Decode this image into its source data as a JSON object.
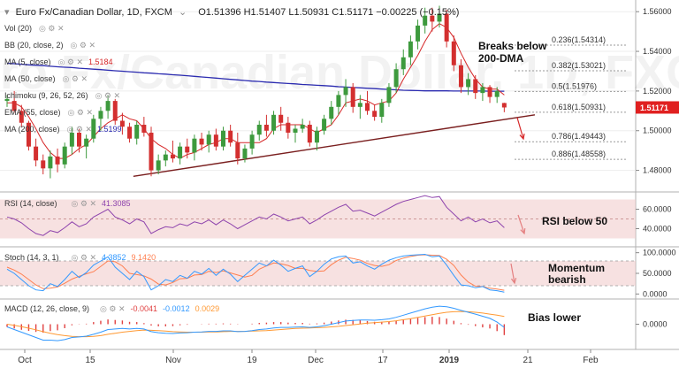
{
  "header": {
    "symbol": "Euro Fx/Canadian Dollar, 1D, FXCM",
    "ohlc": "O1.51396  H1.51407  L1.50931  C1.51171  −0.00225 (−0.15%)"
  },
  "indicators": [
    {
      "label": "Vol (20)",
      "value": "",
      "color": "#555555"
    },
    {
      "label": "BB (20, close, 2)",
      "value": "",
      "color": "#555555"
    },
    {
      "label": "MA (5, close)",
      "value": "1.5184",
      "color": "#d62728"
    },
    {
      "label": "MA (50, close)",
      "value": "",
      "color": "#555555"
    },
    {
      "label": "Ichimoku (9, 26, 52, 26)",
      "value": "",
      "color": "#555555"
    },
    {
      "label": "EMA (55, close)",
      "value": "",
      "color": "#555555"
    },
    {
      "label": "MA (200, close)",
      "value": "1.5199",
      "color": "#2b2bb0"
    }
  ],
  "annotations": {
    "breaks": "Breaks below",
    "dma": "200-DMA",
    "rsi": "RSI below 50",
    "momentum1": "Momentum",
    "momentum2": "bearish",
    "bias": "Bias lower"
  },
  "fib_levels": [
    {
      "label": "0.236(1.54314)",
      "value": 1.54314
    },
    {
      "label": "0.382(1.53021)",
      "value": 1.53021
    },
    {
      "label": "0.5(1.51976)",
      "value": 1.51976
    },
    {
      "label": "0.618(1.50931)",
      "value": 1.50931
    },
    {
      "label": "0.786(1.49443)",
      "value": 1.49443
    },
    {
      "label": "0.886(1.48558)",
      "value": 1.48558
    }
  ],
  "price_tag": {
    "label": "1.51171",
    "value": 1.51171,
    "color": "#e02020"
  },
  "rsi_panel": {
    "label": "RSI (14, close)",
    "value": "41.3085",
    "ticks": [
      "60.0000",
      "40.0000"
    ]
  },
  "stoch_panel": {
    "label": "Stoch (14, 3, 1)",
    "k": "4.3852",
    "d": "9.1420",
    "ticks": [
      "100.0000",
      "50.0000",
      "0.0000"
    ]
  },
  "macd_panel": {
    "label": "MACD (12, 26, close, 9)",
    "hist": "-0.0041",
    "macd": "-0.0012",
    "signal": "0.0029",
    "ticks": [
      "0.0000"
    ]
  },
  "x_axis": {
    "ticks": [
      "Oct",
      "15",
      "Nov",
      "19",
      "Dec",
      "17",
      "2019",
      "21",
      "Feb"
    ]
  },
  "colors": {
    "up": "#3d9a3d",
    "down": "#d32f2f",
    "ma200": "#2b2bb0",
    "ma5": "#d62728",
    "trendline": "#7a1f1f",
    "rsi": "#8e44ad",
    "stoch_k": "#3399ff",
    "stoch_d": "#ff7f50",
    "macd": "#3399ff",
    "signal": "#ff9933",
    "hist": "#e04040",
    "band": "#f0c8c8",
    "arrow": "#d62728"
  },
  "chart_data": {
    "type": "candlestick",
    "x": [
      "Oct",
      "15",
      "Nov",
      "19",
      "Dec",
      "17",
      "2019",
      "21",
      "Feb"
    ],
    "ylim": [
      1.47,
      1.565
    ],
    "y_ticks": [
      1.56,
      1.54,
      1.52,
      1.5,
      1.48
    ],
    "y_tick_labels": [
      "1.56000",
      "1.54000",
      "1.52000",
      "1.50000",
      "1.48000"
    ],
    "candles": [
      {
        "o": 1.515,
        "h": 1.518,
        "l": 1.512,
        "c": 1.516
      },
      {
        "o": 1.515,
        "h": 1.52,
        "l": 1.509,
        "c": 1.51
      },
      {
        "o": 1.51,
        "h": 1.513,
        "l": 1.502,
        "c": 1.504
      },
      {
        "o": 1.504,
        "h": 1.505,
        "l": 1.49,
        "c": 1.492
      },
      {
        "o": 1.492,
        "h": 1.496,
        "l": 1.482,
        "c": 1.485
      },
      {
        "o": 1.485,
        "h": 1.488,
        "l": 1.478,
        "c": 1.481
      },
      {
        "o": 1.481,
        "h": 1.49,
        "l": 1.476,
        "c": 1.487
      },
      {
        "o": 1.487,
        "h": 1.491,
        "l": 1.479,
        "c": 1.483
      },
      {
        "o": 1.483,
        "h": 1.494,
        "l": 1.481,
        "c": 1.492
      },
      {
        "o": 1.492,
        "h": 1.502,
        "l": 1.488,
        "c": 1.499
      },
      {
        "o": 1.499,
        "h": 1.501,
        "l": 1.489,
        "c": 1.492
      },
      {
        "o": 1.492,
        "h": 1.498,
        "l": 1.486,
        "c": 1.496
      },
      {
        "o": 1.496,
        "h": 1.508,
        "l": 1.494,
        "c": 1.506
      },
      {
        "o": 1.506,
        "h": 1.512,
        "l": 1.5,
        "c": 1.51
      },
      {
        "o": 1.51,
        "h": 1.518,
        "l": 1.506,
        "c": 1.515
      },
      {
        "o": 1.515,
        "h": 1.516,
        "l": 1.503,
        "c": 1.505
      },
      {
        "o": 1.505,
        "h": 1.509,
        "l": 1.498,
        "c": 1.502
      },
      {
        "o": 1.502,
        "h": 1.504,
        "l": 1.494,
        "c": 1.496
      },
      {
        "o": 1.496,
        "h": 1.505,
        "l": 1.493,
        "c": 1.503
      },
      {
        "o": 1.503,
        "h": 1.507,
        "l": 1.497,
        "c": 1.499
      },
      {
        "o": 1.499,
        "h": 1.502,
        "l": 1.477,
        "c": 1.48
      },
      {
        "o": 1.48,
        "h": 1.488,
        "l": 1.478,
        "c": 1.485
      },
      {
        "o": 1.485,
        "h": 1.49,
        "l": 1.482,
        "c": 1.488
      },
      {
        "o": 1.488,
        "h": 1.495,
        "l": 1.484,
        "c": 1.486
      },
      {
        "o": 1.486,
        "h": 1.494,
        "l": 1.483,
        "c": 1.492
      },
      {
        "o": 1.492,
        "h": 1.496,
        "l": 1.486,
        "c": 1.489
      },
      {
        "o": 1.489,
        "h": 1.498,
        "l": 1.485,
        "c": 1.496
      },
      {
        "o": 1.496,
        "h": 1.499,
        "l": 1.49,
        "c": 1.493
      },
      {
        "o": 1.493,
        "h": 1.5,
        "l": 1.489,
        "c": 1.498
      },
      {
        "o": 1.498,
        "h": 1.501,
        "l": 1.49,
        "c": 1.492
      },
      {
        "o": 1.492,
        "h": 1.502,
        "l": 1.49,
        "c": 1.5
      },
      {
        "o": 1.5,
        "h": 1.503,
        "l": 1.492,
        "c": 1.494
      },
      {
        "o": 1.494,
        "h": 1.499,
        "l": 1.483,
        "c": 1.486
      },
      {
        "o": 1.486,
        "h": 1.493,
        "l": 1.484,
        "c": 1.491
      },
      {
        "o": 1.491,
        "h": 1.5,
        "l": 1.488,
        "c": 1.498
      },
      {
        "o": 1.498,
        "h": 1.505,
        "l": 1.495,
        "c": 1.503
      },
      {
        "o": 1.503,
        "h": 1.508,
        "l": 1.497,
        "c": 1.5
      },
      {
        "o": 1.5,
        "h": 1.51,
        "l": 1.498,
        "c": 1.508
      },
      {
        "o": 1.508,
        "h": 1.512,
        "l": 1.5,
        "c": 1.504
      },
      {
        "o": 1.504,
        "h": 1.507,
        "l": 1.496,
        "c": 1.499
      },
      {
        "o": 1.499,
        "h": 1.503,
        "l": 1.494,
        "c": 1.501
      },
      {
        "o": 1.501,
        "h": 1.506,
        "l": 1.499,
        "c": 1.503
      },
      {
        "o": 1.503,
        "h": 1.505,
        "l": 1.492,
        "c": 1.494
      },
      {
        "o": 1.494,
        "h": 1.502,
        "l": 1.49,
        "c": 1.5
      },
      {
        "o": 1.5,
        "h": 1.508,
        "l": 1.498,
        "c": 1.506
      },
      {
        "o": 1.506,
        "h": 1.515,
        "l": 1.503,
        "c": 1.512
      },
      {
        "o": 1.512,
        "h": 1.52,
        "l": 1.508,
        "c": 1.518
      },
      {
        "o": 1.518,
        "h": 1.526,
        "l": 1.512,
        "c": 1.522
      },
      {
        "o": 1.522,
        "h": 1.524,
        "l": 1.509,
        "c": 1.512
      },
      {
        "o": 1.512,
        "h": 1.518,
        "l": 1.506,
        "c": 1.514
      },
      {
        "o": 1.514,
        "h": 1.52,
        "l": 1.508,
        "c": 1.51
      },
      {
        "o": 1.51,
        "h": 1.513,
        "l": 1.505,
        "c": 1.507
      },
      {
        "o": 1.507,
        "h": 1.516,
        "l": 1.504,
        "c": 1.514
      },
      {
        "o": 1.514,
        "h": 1.524,
        "l": 1.512,
        "c": 1.522
      },
      {
        "o": 1.522,
        "h": 1.534,
        "l": 1.519,
        "c": 1.531
      },
      {
        "o": 1.531,
        "h": 1.541,
        "l": 1.528,
        "c": 1.537
      },
      {
        "o": 1.537,
        "h": 1.548,
        "l": 1.533,
        "c": 1.545
      },
      {
        "o": 1.545,
        "h": 1.556,
        "l": 1.541,
        "c": 1.553
      },
      {
        "o": 1.553,
        "h": 1.562,
        "l": 1.549,
        "c": 1.558
      },
      {
        "o": 1.558,
        "h": 1.562,
        "l": 1.55,
        "c": 1.555
      },
      {
        "o": 1.555,
        "h": 1.563,
        "l": 1.552,
        "c": 1.559
      },
      {
        "o": 1.559,
        "h": 1.561,
        "l": 1.542,
        "c": 1.545
      },
      {
        "o": 1.545,
        "h": 1.548,
        "l": 1.53,
        "c": 1.533
      },
      {
        "o": 1.533,
        "h": 1.536,
        "l": 1.519,
        "c": 1.522
      },
      {
        "o": 1.522,
        "h": 1.529,
        "l": 1.518,
        "c": 1.526
      },
      {
        "o": 1.526,
        "h": 1.528,
        "l": 1.516,
        "c": 1.519
      },
      {
        "o": 1.519,
        "h": 1.524,
        "l": 1.515,
        "c": 1.522
      },
      {
        "o": 1.522,
        "h": 1.523,
        "l": 1.514,
        "c": 1.517
      },
      {
        "o": 1.517,
        "h": 1.522,
        "l": 1.514,
        "c": 1.52
      },
      {
        "o": 1.51396,
        "h": 1.51407,
        "l": 1.50931,
        "c": 1.51171
      }
    ],
    "ma200": [
      1.534,
      1.5338,
      1.5335,
      1.5332,
      1.533,
      1.5328,
      1.5325,
      1.5322,
      1.532,
      1.5318,
      1.5315,
      1.5313,
      1.531,
      1.5308,
      1.5305,
      1.5302,
      1.53,
      1.5297,
      1.5295,
      1.5292,
      1.529,
      1.5287,
      1.5285,
      1.5282,
      1.528,
      1.5277,
      1.5274,
      1.5271,
      1.5268,
      1.5265,
      1.5262,
      1.5259,
      1.5256,
      1.5253,
      1.525,
      1.5248,
      1.5245,
      1.5243,
      1.524,
      1.5238,
      1.5236,
      1.5233,
      1.5231,
      1.5229,
      1.5227,
      1.5225,
      1.5222,
      1.522,
      1.5218,
      1.5216,
      1.5214,
      1.5212,
      1.521,
      1.5208,
      1.5206,
      1.5204,
      1.5203,
      1.5202,
      1.5201,
      1.5201,
      1.5201,
      1.5201,
      1.52,
      1.52,
      1.52,
      1.52,
      1.52,
      1.5199,
      1.5199,
      1.5199
    ],
    "ma5": [
      1.514,
      1.514,
      1.512,
      1.507,
      1.501,
      1.494,
      1.489,
      1.486,
      1.486,
      1.488,
      1.491,
      1.493,
      1.497,
      1.501,
      1.504,
      1.506,
      1.508,
      1.506,
      1.505,
      1.501,
      1.496,
      1.493,
      1.491,
      1.488,
      1.486,
      1.488,
      1.489,
      1.491,
      1.493,
      1.494,
      1.496,
      1.496,
      1.494,
      1.494,
      1.494,
      1.494,
      1.496,
      1.501,
      1.503,
      1.503,
      1.503,
      1.503,
      1.501,
      1.499,
      1.501,
      1.503,
      1.508,
      1.514,
      1.515,
      1.516,
      1.515,
      1.513,
      1.514,
      1.515,
      1.519,
      1.526,
      1.532,
      1.538,
      1.545,
      1.551,
      1.554,
      1.552,
      1.547,
      1.539,
      1.532,
      1.526,
      1.522,
      1.521,
      1.521,
      1.518
    ],
    "trendline": {
      "from": {
        "index": 19,
        "value": 1.477
      },
      "to": {
        "index": 73,
        "value": 1.508
      }
    },
    "rsi": [
      52,
      50,
      46,
      40,
      35,
      33,
      38,
      36,
      41,
      47,
      42,
      45,
      52,
      56,
      60,
      52,
      49,
      45,
      50,
      47,
      35,
      39,
      42,
      41,
      45,
      43,
      47,
      45,
      49,
      44,
      49,
      45,
      40,
      44,
      48,
      52,
      50,
      55,
      52,
      48,
      50,
      52,
      45,
      49,
      54,
      58,
      62,
      65,
      58,
      59,
      56,
      53,
      57,
      61,
      65,
      68,
      70,
      72,
      74,
      72,
      73,
      62,
      55,
      48,
      52,
      47,
      50,
      46,
      48,
      41
    ],
    "stoch_k": [
      60,
      50,
      35,
      20,
      10,
      8,
      25,
      18,
      35,
      55,
      40,
      52,
      70,
      80,
      90,
      65,
      50,
      35,
      55,
      42,
      10,
      20,
      35,
      30,
      45,
      38,
      55,
      48,
      62,
      45,
      60,
      48,
      30,
      45,
      60,
      75,
      68,
      82,
      70,
      55,
      62,
      68,
      42,
      55,
      72,
      85,
      90,
      92,
      75,
      78,
      68,
      60,
      72,
      82,
      88,
      92,
      94,
      95,
      96,
      90,
      92,
      70,
      45,
      22,
      20,
      15,
      18,
      10,
      8,
      4.3852
    ],
    "stoch_d": [
      65,
      58,
      48,
      35,
      22,
      13,
      14,
      17,
      26,
      36,
      43,
      49,
      54,
      67,
      80,
      78,
      68,
      50,
      47,
      44,
      36,
      24,
      22,
      28,
      37,
      38,
      46,
      47,
      55,
      52,
      56,
      51,
      46,
      41,
      45,
      60,
      68,
      75,
      73,
      69,
      62,
      62,
      57,
      55,
      56,
      71,
      82,
      89,
      86,
      82,
      74,
      69,
      67,
      71,
      81,
      87,
      91,
      94,
      95,
      94,
      93,
      84,
      69,
      46,
      29,
      19,
      18,
      14,
      12,
      9.142
    ],
    "macd": [
      -0.001,
      -0.002,
      -0.003,
      -0.004,
      -0.005,
      -0.006,
      -0.006,
      -0.0062,
      -0.0058,
      -0.005,
      -0.0048,
      -0.0045,
      -0.0038,
      -0.003,
      -0.002,
      -0.0018,
      -0.0016,
      -0.0018,
      -0.0016,
      -0.0018,
      -0.0028,
      -0.0032,
      -0.0034,
      -0.0035,
      -0.0033,
      -0.0032,
      -0.003,
      -0.0029,
      -0.0027,
      -0.0027,
      -0.0025,
      -0.0025,
      -0.0028,
      -0.0027,
      -0.0024,
      -0.002,
      -0.0018,
      -0.0014,
      -0.0012,
      -0.0012,
      -0.0011,
      -0.001,
      -0.0012,
      -0.001,
      -0.0006,
      0.0,
      0.0006,
      0.0012,
      0.0014,
      0.0016,
      0.0016,
      0.0015,
      0.0017,
      0.002,
      0.0026,
      0.0034,
      0.0042,
      0.005,
      0.0058,
      0.0064,
      0.0068,
      0.0066,
      0.006,
      0.0052,
      0.0045,
      0.0038,
      0.003,
      0.0022,
      0.0008,
      -0.0012
    ],
    "macd_signal": [
      0.0,
      -0.0004,
      -0.0009,
      -0.0015,
      -0.0021,
      -0.0028,
      -0.0034,
      -0.0039,
      -0.0043,
      -0.0046,
      -0.0047,
      -0.0047,
      -0.0046,
      -0.0043,
      -0.0038,
      -0.0034,
      -0.003,
      -0.0027,
      -0.0024,
      -0.0022,
      -0.0023,
      -0.0024,
      -0.0026,
      -0.0028,
      -0.0029,
      -0.003,
      -0.003,
      -0.003,
      -0.0029,
      -0.0029,
      -0.0028,
      -0.0027,
      -0.0027,
      -0.0027,
      -0.0026,
      -0.0025,
      -0.0024,
      -0.0022,
      -0.002,
      -0.0018,
      -0.0016,
      -0.0015,
      -0.0014,
      -0.0013,
      -0.0012,
      -0.001,
      -0.0008,
      -0.0005,
      -0.0002,
      0.0001,
      0.0004,
      0.0006,
      0.0008,
      0.001,
      0.0013,
      0.0017,
      0.0021,
      0.0026,
      0.0031,
      0.0036,
      0.0041,
      0.0045,
      0.0047,
      0.0048,
      0.0047,
      0.0045,
      0.0042,
      0.0038,
      0.0034,
      0.0029
    ]
  }
}
